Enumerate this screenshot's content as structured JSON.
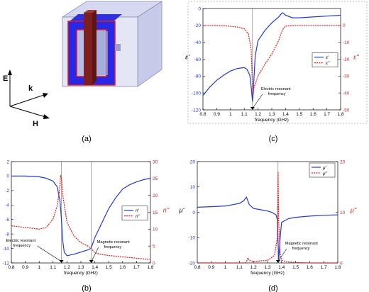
{
  "panel_labels": {
    "a": "(a)",
    "b": "(b)",
    "c": "(c)",
    "d": "(d)"
  },
  "figure_a": {
    "axes": {
      "e": "E",
      "k": "k",
      "h": "H"
    },
    "colors": {
      "box": "#b9bde3",
      "ring": "#2828e6",
      "ring_edge": "#e11b1b",
      "bar": "#7b1f1f"
    }
  },
  "chart_data": [
    {
      "id": "c",
      "type": "line",
      "xlabel": "frequency (GHz)",
      "ylabel_left": "ε'",
      "ylabel_right": "ε''",
      "xlim": [
        0.8,
        1.8
      ],
      "ylim_left": [
        -120,
        0
      ],
      "ylim_right": [
        -50,
        10
      ],
      "xticks": [
        "0.8",
        "0.9",
        "1",
        "1.1",
        "1.2",
        "1.3",
        "1.4",
        "1.5",
        "1.6",
        "1.7",
        "1.8"
      ],
      "yticks_left": [
        "0",
        "-20",
        "-40",
        "-60",
        "-80",
        "-100",
        "-120"
      ],
      "yticks_right": [
        "0",
        "-10",
        "-20",
        "-30",
        "-40",
        "-50"
      ],
      "legend": {
        "placement": "right",
        "entries": [
          "ε'",
          "ε''"
        ]
      },
      "series": [
        {
          "name": "ε'",
          "axis": "left",
          "color": "#1f3bd6",
          "dash": false,
          "x": [
            0.8,
            0.85,
            0.9,
            0.95,
            1.0,
            1.05,
            1.1,
            1.12,
            1.14,
            1.15,
            1.16,
            1.165,
            1.17,
            1.18,
            1.2,
            1.25,
            1.3,
            1.35,
            1.37,
            1.38,
            1.4,
            1.45,
            1.5,
            1.6,
            1.7,
            1.8
          ],
          "y": [
            -103,
            -93,
            -85,
            -79,
            -74,
            -71,
            -70,
            -72,
            -79,
            -92,
            -110,
            -100,
            -84,
            -56,
            -38,
            -26,
            -17,
            -10,
            -6,
            -5,
            -8,
            -11,
            -11,
            -10,
            -9,
            -8
          ]
        },
        {
          "name": "ε''",
          "axis": "right",
          "color": "#e11b1b",
          "dash": true,
          "x": [
            0.8,
            0.9,
            1.0,
            1.05,
            1.1,
            1.13,
            1.15,
            1.16,
            1.165,
            1.17,
            1.2,
            1.25,
            1.3,
            1.35,
            1.37,
            1.39,
            1.4,
            1.45,
            1.5,
            1.6,
            1.7,
            1.8
          ],
          "y": [
            0,
            0,
            -0.5,
            -1,
            -2,
            -5,
            -14,
            -37,
            -41,
            -37,
            -30,
            -23,
            -17,
            -9,
            -4,
            -1,
            -0.5,
            0,
            0,
            0,
            0,
            0
          ]
        }
      ],
      "vlines": [
        1.16
      ],
      "annotation": {
        "lines": [
          "Electric resonant",
          "frequency"
        ],
        "x": 1.16,
        "y": -120
      }
    },
    {
      "id": "b",
      "type": "line",
      "xlabel": "frequency (GHz)",
      "ylabel_left": "n'",
      "ylabel_right": "n''",
      "xlim": [
        0.8,
        1.8
      ],
      "ylim_left": [
        -12,
        2
      ],
      "ylim_right": [
        0,
        30
      ],
      "xticks": [
        "0.8",
        "0.9",
        "1",
        "1.1",
        "1.2",
        "1.3",
        "1.4",
        "1.5",
        "1.6",
        "1.7",
        "1.8"
      ],
      "yticks_left": [
        "2",
        "0",
        "-2",
        "-4",
        "-6",
        "-8",
        "-10",
        "-12"
      ],
      "yticks_right": [
        "30",
        "25",
        "20",
        "15",
        "10",
        "5",
        "0"
      ],
      "legend": {
        "placement": "right",
        "entries": [
          "n'",
          "n''"
        ]
      },
      "series": [
        {
          "name": "n'",
          "axis": "left",
          "color": "#1f3bd6",
          "dash": false,
          "x": [
            0.8,
            0.9,
            1.0,
            1.05,
            1.1,
            1.13,
            1.15,
            1.16,
            1.17,
            1.18,
            1.2,
            1.25,
            1.3,
            1.35,
            1.37,
            1.38,
            1.4,
            1.45,
            1.5,
            1.55,
            1.6,
            1.65,
            1.7,
            1.75,
            1.8
          ],
          "y": [
            0,
            0,
            -0.1,
            -0.3,
            -0.7,
            -1.5,
            -3.5,
            -6,
            -9,
            -10.5,
            -11,
            -10.8,
            -10.5,
            -10.2,
            -10,
            -9.6,
            -8.5,
            -6.5,
            -4.5,
            -3,
            -1.8,
            -1.2,
            -0.8,
            -0.5,
            -0.3
          ]
        },
        {
          "name": "n''",
          "axis": "right",
          "color": "#e11b1b",
          "dash": true,
          "x": [
            0.8,
            0.9,
            1.0,
            1.05,
            1.1,
            1.13,
            1.145,
            1.155,
            1.16,
            1.17,
            1.2,
            1.25,
            1.3,
            1.35,
            1.37,
            1.38,
            1.4,
            1.45,
            1.5,
            1.6,
            1.7,
            1.8
          ],
          "y": [
            11,
            10.5,
            10,
            10.5,
            13,
            17,
            21,
            26,
            25,
            20,
            12,
            8,
            6,
            5,
            4.5,
            4,
            3,
            2.5,
            2.2,
            1.8,
            1.4,
            1
          ]
        }
      ],
      "vlines": [
        1.16,
        1.375
      ],
      "annotations": [
        {
          "lines": [
            "Electric resonant",
            "frequency"
          ],
          "x": 1.16,
          "y": -12
        },
        {
          "lines": [
            "Magnetic resonant",
            "frequency"
          ],
          "x": 1.375,
          "y": -12
        }
      ]
    },
    {
      "id": "d",
      "type": "line",
      "xlabel": "frequency (GHz)",
      "ylabel_left": "μ'",
      "ylabel_right": "μ''",
      "xlim": [
        0.8,
        1.8
      ],
      "ylim_left": [
        -20,
        20
      ],
      "ylim_right": [
        0,
        20
      ],
      "xticks": [
        "0.8",
        "0.9",
        "1",
        "1.1",
        "1.2",
        "1.3",
        "1.4",
        "1.5",
        "1.6",
        "1.7",
        "1.8"
      ],
      "yticks_left": [
        "20",
        "10",
        "0",
        "-10",
        "-20"
      ],
      "yticks_right": [
        "20",
        "10",
        "0"
      ],
      "legend": {
        "placement": "top-right",
        "entries": [
          "μ'",
          "μ''"
        ]
      },
      "series": [
        {
          "name": "μ'",
          "axis": "left",
          "color": "#1f3bd6",
          "dash": false,
          "x": [
            0.8,
            0.9,
            1.0,
            1.05,
            1.1,
            1.13,
            1.15,
            1.16,
            1.17,
            1.2,
            1.25,
            1.3,
            1.33,
            1.36,
            1.37,
            1.375,
            1.38,
            1.39,
            1.4,
            1.45,
            1.5,
            1.6,
            1.7,
            1.8
          ],
          "y": [
            2,
            2.2,
            2.5,
            3,
            3.5,
            4.5,
            6,
            4.5,
            3,
            1.5,
            1,
            0.5,
            0,
            -1,
            -3,
            -12,
            -19,
            -10,
            -4,
            -2.5,
            -2,
            -1.5,
            -1.2,
            -1
          ]
        },
        {
          "name": "μ''",
          "axis": "right",
          "color": "#e11b1b",
          "dash": true,
          "x": [
            0.8,
            0.9,
            1.0,
            1.1,
            1.14,
            1.15,
            1.16,
            1.17,
            1.2,
            1.3,
            1.35,
            1.37,
            1.375,
            1.38,
            1.39,
            1.4,
            1.45,
            1.5,
            1.6,
            1.7,
            1.8
          ],
          "y": [
            0,
            0,
            0,
            0,
            0,
            0.2,
            1,
            0.5,
            0.3,
            0.5,
            1.5,
            5,
            18,
            8,
            2,
            0.5,
            0.2,
            0.1,
            0,
            0,
            0
          ]
        }
      ],
      "vlines": [
        1.375
      ],
      "annotation": {
        "lines": [
          "Magnetic resonant",
          "frequency"
        ],
        "x": 1.375,
        "y": -20
      }
    }
  ]
}
